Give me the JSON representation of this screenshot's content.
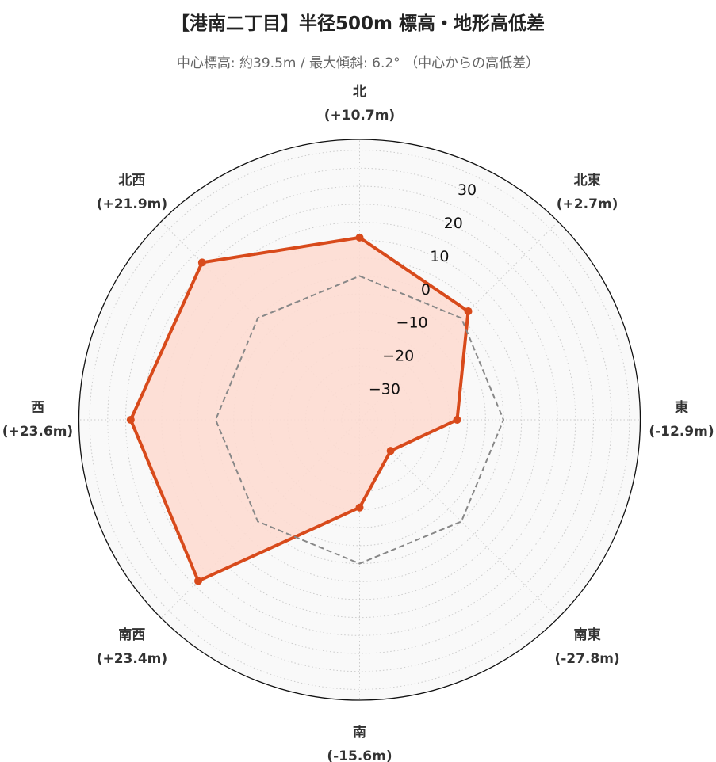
{
  "title": "【港南二丁目】半径500m 標高・地形高低差",
  "subtitle": "中心標高: 約39.5m / 最大傾斜: 6.2° （中心からの高低差）",
  "colors": {
    "series_line": "#d84a1b",
    "series_fill": "#fddcd2",
    "reference_line": "#888888",
    "plot_background": "#f9f9f9",
    "outer_ring": "#111111",
    "grid": "#cccccc"
  },
  "chart_data": {
    "type": "radar",
    "categories": [
      "北",
      "北東",
      "東",
      "南東",
      "南",
      "南西",
      "西",
      "北西"
    ],
    "category_value_labels": [
      "(+10.7m)",
      "(+2.7m)",
      "(-12.9m)",
      "(-27.8m)",
      "(-15.6m)",
      "(+23.4m)",
      "(+23.6m)",
      "(+21.9m)"
    ],
    "series": [
      {
        "values": [
          10.7,
          2.7,
          -12.9,
          -27.8,
          -15.6,
          23.4,
          23.6,
          21.9
        ],
        "style": "solid-filled"
      },
      {
        "values": [
          0,
          0,
          0,
          0,
          0,
          0,
          0,
          0
        ],
        "style": "dashed-reference"
      }
    ],
    "r_ticks": [
      30,
      20,
      10,
      0,
      -10,
      -20,
      -30
    ],
    "r_tick_labels": [
      "30",
      "20",
      "10",
      "0",
      "−10",
      "−20",
      "−30"
    ],
    "rlim": [
      -40,
      38
    ],
    "direction": "clockwise",
    "start_angle": "north",
    "grid": true
  }
}
